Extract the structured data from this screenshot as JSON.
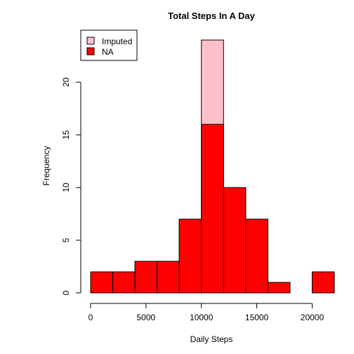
{
  "chart_data": {
    "type": "bar",
    "title": "Total Steps In A Day",
    "xlabel": "Daily Steps",
    "ylabel": "Frequency",
    "bin_edges": [
      0,
      2000,
      4000,
      6000,
      8000,
      10000,
      12000,
      14000,
      16000,
      18000,
      20000,
      22000
    ],
    "series": [
      {
        "name": "Imputed",
        "color": "#FFC0CB",
        "values": [
          2,
          2,
          3,
          3,
          7,
          24,
          10,
          7,
          1,
          0,
          2
        ]
      },
      {
        "name": "NA",
        "color": "#FF0000",
        "values": [
          2,
          2,
          3,
          3,
          7,
          16,
          10,
          7,
          1,
          0,
          2
        ]
      }
    ],
    "x_ticks": [
      "0",
      "5000",
      "10000",
      "15000",
      "20000"
    ],
    "x_tick_values": [
      0,
      5000,
      10000,
      15000,
      20000
    ],
    "y_ticks": [
      "0",
      "5",
      "10",
      "15",
      "20"
    ],
    "y_tick_values": [
      0,
      5,
      10,
      15,
      20
    ],
    "xlim": [
      0,
      22000
    ],
    "ylim": [
      0,
      24
    ],
    "grid": false,
    "legend": {
      "placement": "top-left",
      "entries": [
        {
          "label": "Imputed",
          "color": "#FFC0CB"
        },
        {
          "label": "NA",
          "color": "#FF0000"
        }
      ]
    }
  }
}
